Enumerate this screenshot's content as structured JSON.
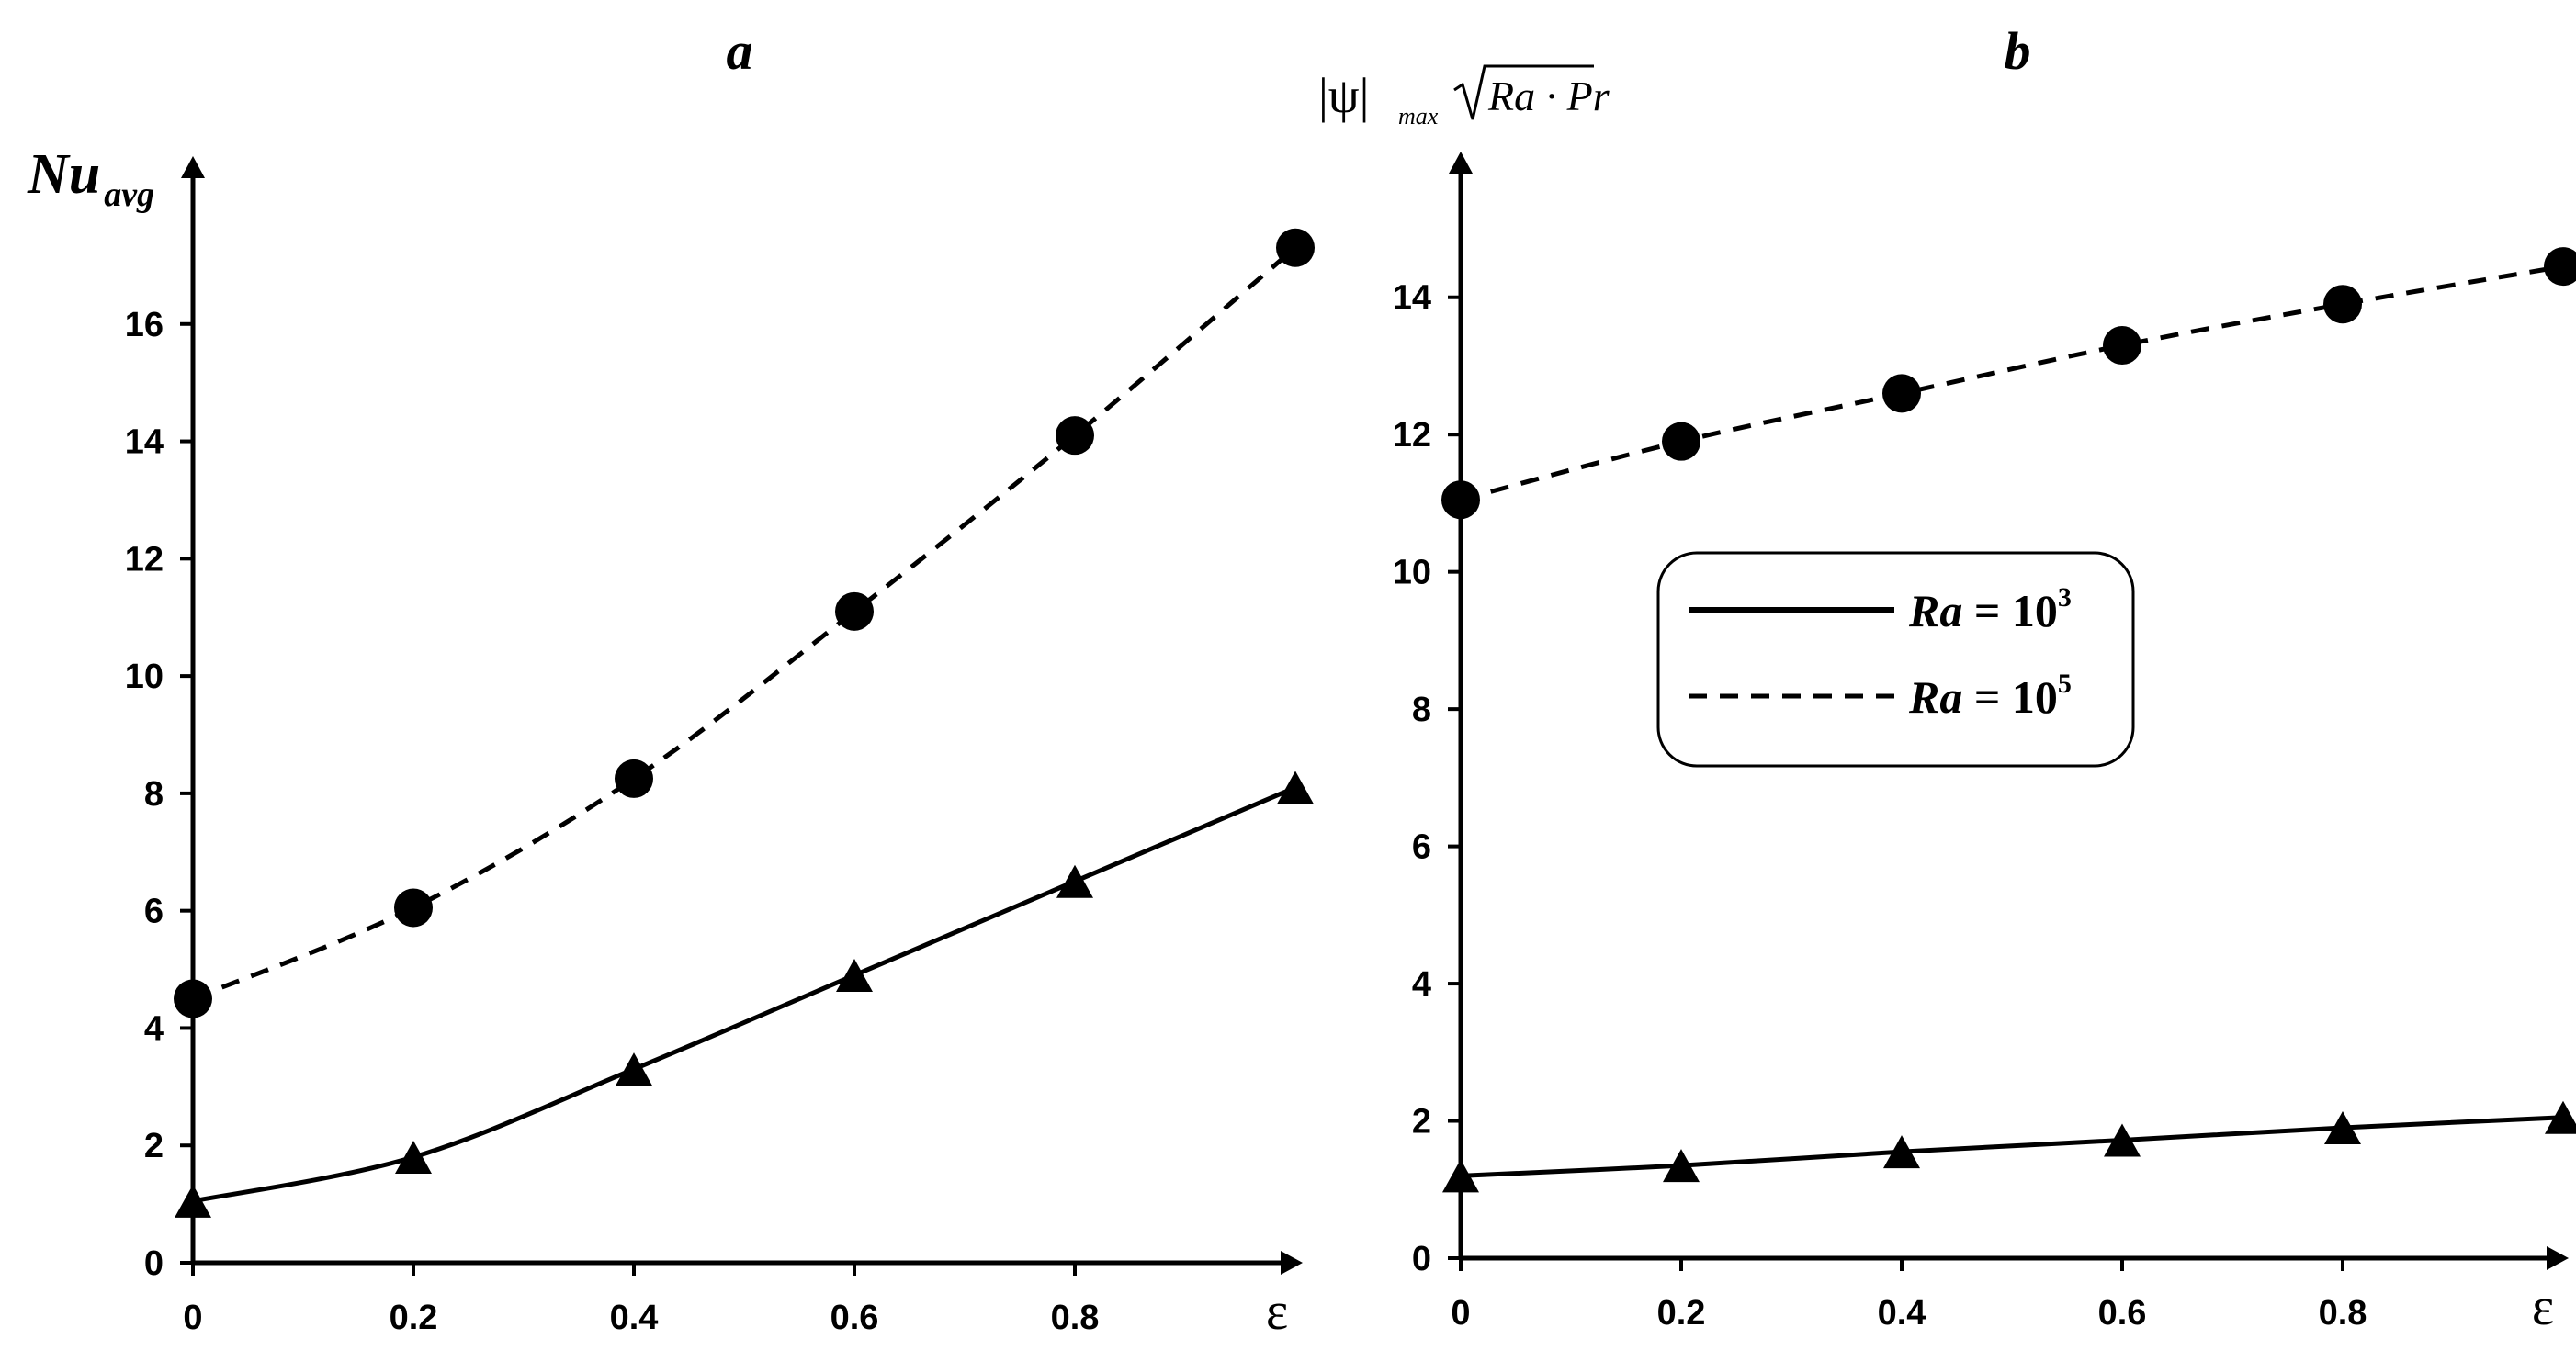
{
  "legend": {
    "entries": [
      {
        "style": "solid",
        "prefix": "Ra",
        "eq": " = 10",
        "exp": "3"
      },
      {
        "style": "dashed",
        "prefix": "Ra",
        "eq": " = 10",
        "exp": "5"
      }
    ]
  },
  "chart_data": [
    {
      "panel": "a",
      "type": "line",
      "ylabel_main": "Nu",
      "ylabel_sub": "avg",
      "xlabel": "ε",
      "xlim": [
        0,
        1.0
      ],
      "ylim": [
        0,
        18
      ],
      "x_ticks": [
        "0",
        "0.2",
        "0.4",
        "0.6",
        "0.8"
      ],
      "y_ticks": [
        "0",
        "2",
        "4",
        "6",
        "8",
        "10",
        "12",
        "14",
        "16"
      ],
      "x_tick_values": [
        0,
        0.2,
        0.4,
        0.6,
        0.8
      ],
      "y_tick_values": [
        0,
        2,
        4,
        6,
        8,
        10,
        12,
        14,
        16
      ],
      "series": [
        {
          "name": "Ra = 10^3",
          "style": "solid",
          "marker": "triangle",
          "x": [
            0,
            0.2,
            0.4,
            0.6,
            0.8,
            1.0
          ],
          "y": [
            1.05,
            1.8,
            3.3,
            4.9,
            6.5,
            8.1
          ]
        },
        {
          "name": "Ra = 10^5",
          "style": "dashed",
          "marker": "circle",
          "x": [
            0,
            0.2,
            0.4,
            0.6,
            0.8,
            1.0
          ],
          "y": [
            4.5,
            6.05,
            8.25,
            11.1,
            14.1,
            17.3
          ]
        }
      ]
    },
    {
      "panel": "b",
      "type": "line",
      "ylabel_psi": "|ψ|",
      "ylabel_sub": "max",
      "ylabel_sqrt": "Ra · Pr",
      "xlabel": "ε",
      "xlim": [
        0,
        1.0
      ],
      "ylim": [
        0,
        15
      ],
      "x_ticks": [
        "0",
        "0.2",
        "0.4",
        "0.6",
        "0.8"
      ],
      "y_ticks": [
        "0",
        "2",
        "4",
        "6",
        "8",
        "10",
        "12",
        "14"
      ],
      "x_tick_values": [
        0,
        0.2,
        0.4,
        0.6,
        0.8
      ],
      "y_tick_values": [
        0,
        2,
        4,
        6,
        8,
        10,
        12,
        14
      ],
      "series": [
        {
          "name": "Ra = 10^3",
          "style": "solid",
          "marker": "triangle",
          "x": [
            0,
            0.2,
            0.4,
            0.6,
            0.8,
            1.0
          ],
          "y": [
            1.2,
            1.35,
            1.55,
            1.72,
            1.9,
            2.05
          ]
        },
        {
          "name": "Ra = 10^5",
          "style": "dashed",
          "marker": "circle",
          "x": [
            0,
            0.2,
            0.4,
            0.6,
            0.8,
            1.0
          ],
          "y": [
            11.05,
            11.9,
            12.6,
            13.3,
            13.9,
            14.45
          ]
        }
      ]
    }
  ]
}
